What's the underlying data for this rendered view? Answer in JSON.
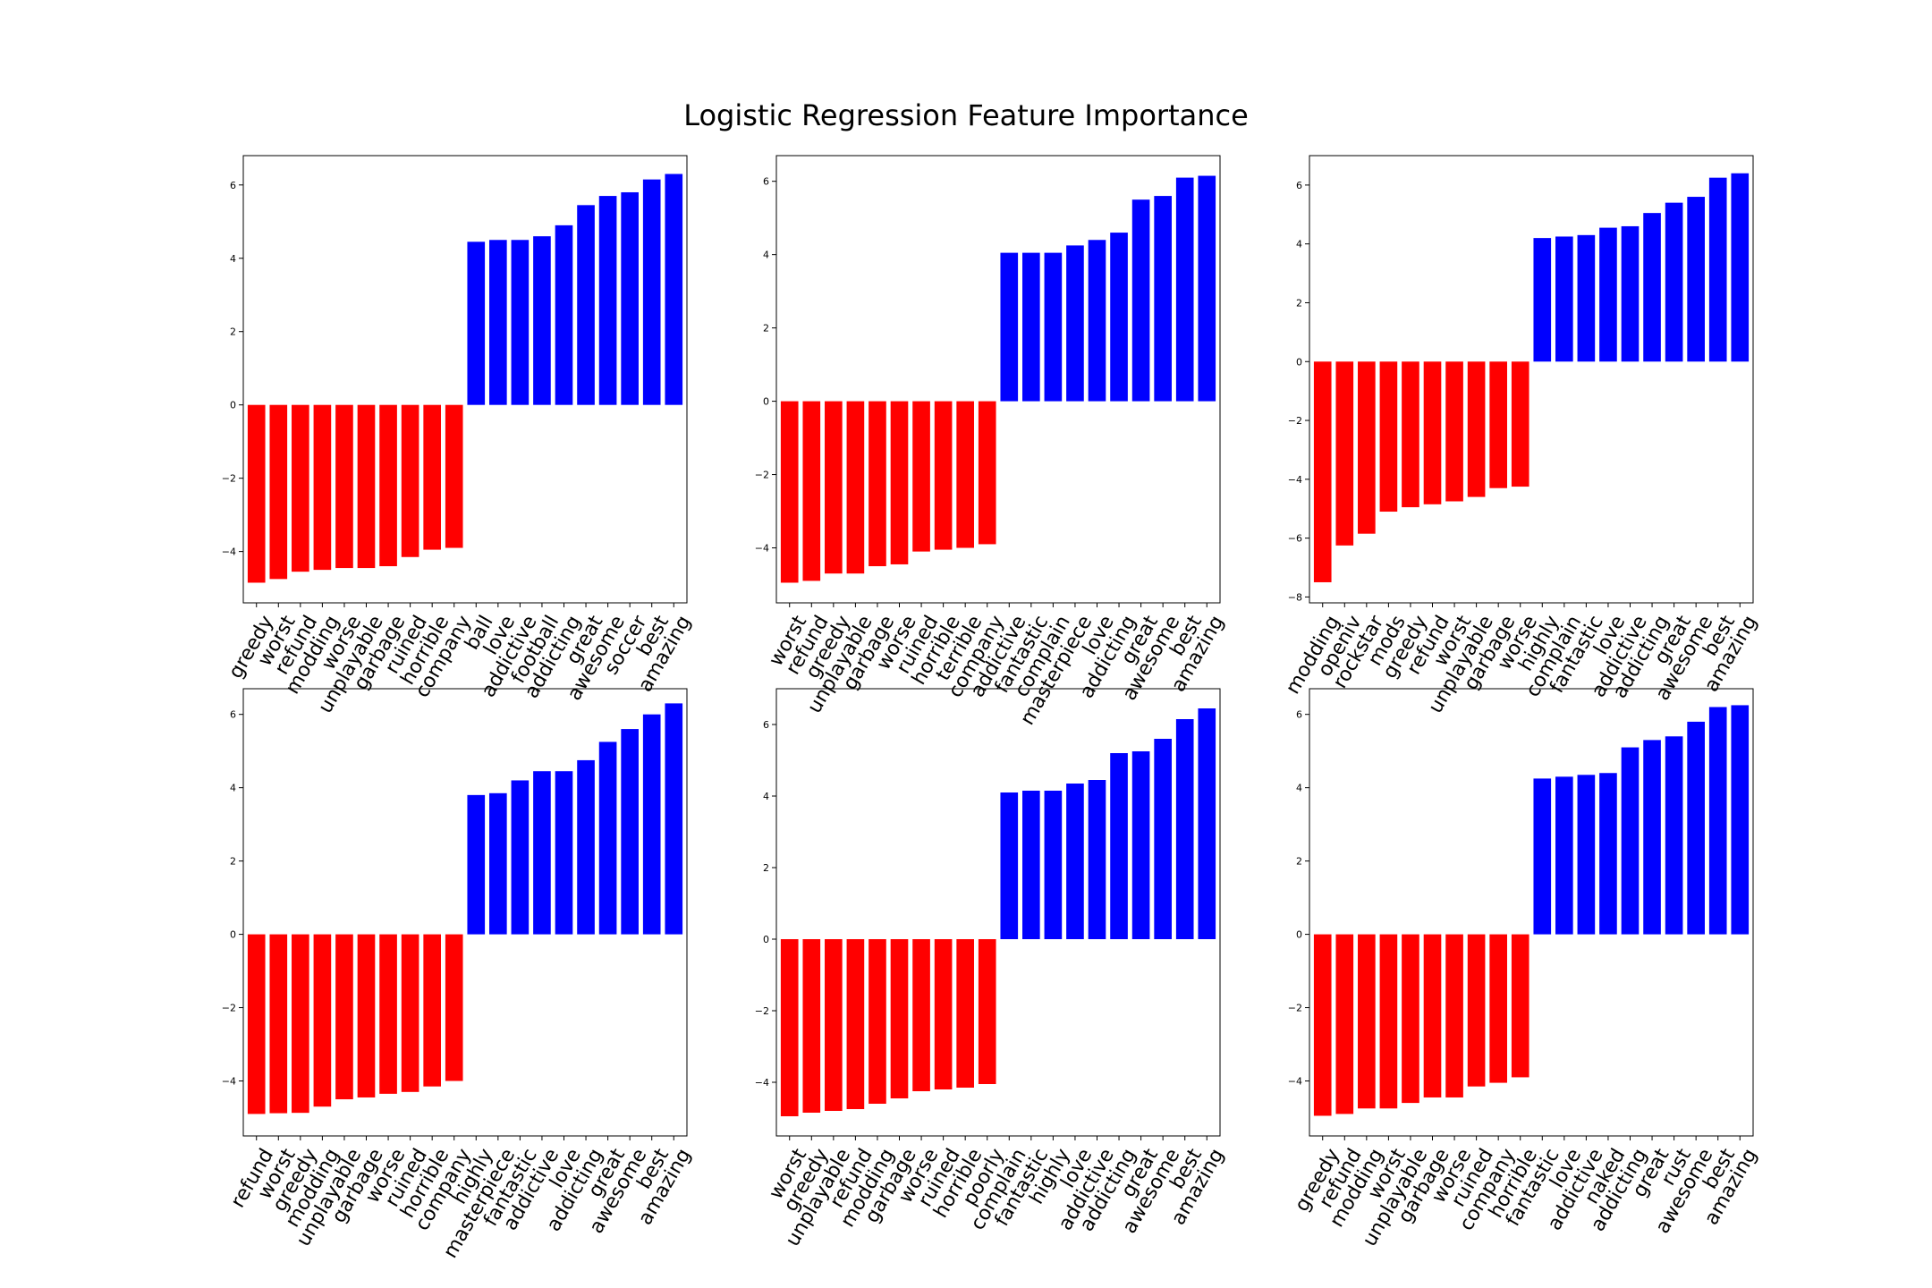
{
  "figure": {
    "title": "Logistic Regression Feature Importance"
  },
  "colors": {
    "negative": "#ff0000",
    "positive": "#0000ff",
    "background": "#ffffff",
    "axis": "#000000"
  },
  "chart_data": [
    {
      "type": "bar",
      "categories": [
        "greedy",
        "worst",
        "refund",
        "modding",
        "worse",
        "unplayable",
        "garbage",
        "ruined",
        "horrible",
        "company",
        "ball",
        "love",
        "addictive",
        "football",
        "addicting",
        "great",
        "awesome",
        "soccer",
        "best",
        "amazing"
      ],
      "values": [
        -4.85,
        -4.75,
        -4.55,
        -4.5,
        -4.45,
        -4.45,
        -4.4,
        -4.15,
        -3.95,
        -3.9,
        4.45,
        4.5,
        4.5,
        4.6,
        4.9,
        5.45,
        5.7,
        5.8,
        6.15,
        6.3
      ],
      "colors": [
        "negative",
        "negative",
        "negative",
        "negative",
        "negative",
        "negative",
        "negative",
        "negative",
        "negative",
        "negative",
        "positive",
        "positive",
        "positive",
        "positive",
        "positive",
        "positive",
        "positive",
        "positive",
        "positive",
        "positive"
      ],
      "yticks": [
        -4,
        -2,
        0,
        2,
        4,
        6
      ],
      "ytick_labels": [
        "−4",
        "−2",
        "0",
        "2",
        "4",
        "6"
      ],
      "ylim": [
        -5.4,
        6.8
      ],
      "grid": false
    },
    {
      "type": "bar",
      "categories": [
        "worst",
        "refund",
        "greedy",
        "unplayable",
        "garbage",
        "worse",
        "ruined",
        "horrible",
        "terrible",
        "company",
        "addictive",
        "fantastic",
        "complain",
        "masterpiece",
        "love",
        "addicting",
        "great",
        "awesome",
        "best",
        "amazing"
      ],
      "values": [
        -4.95,
        -4.9,
        -4.7,
        -4.7,
        -4.5,
        -4.45,
        -4.1,
        -4.05,
        -4.0,
        -3.9,
        4.05,
        4.05,
        4.05,
        4.25,
        4.4,
        4.6,
        5.5,
        5.6,
        6.1,
        6.15
      ],
      "colors": [
        "negative",
        "negative",
        "negative",
        "negative",
        "negative",
        "negative",
        "negative",
        "negative",
        "negative",
        "negative",
        "positive",
        "positive",
        "positive",
        "positive",
        "positive",
        "positive",
        "positive",
        "positive",
        "positive",
        "positive"
      ],
      "yticks": [
        -4,
        -2,
        0,
        2,
        4,
        6
      ],
      "ytick_labels": [
        "−4",
        "−2",
        "0",
        "2",
        "4",
        "6"
      ],
      "ylim": [
        -5.5,
        6.7
      ],
      "grid": false
    },
    {
      "type": "bar",
      "categories": [
        "modding",
        "openiv",
        "rockstar",
        "mods",
        "greedy",
        "refund",
        "worst",
        "unplayable",
        "garbage",
        "worse",
        "highly",
        "complain",
        "fantastic",
        "love",
        "addictive",
        "addicting",
        "great",
        "awesome",
        "best",
        "amazing"
      ],
      "values": [
        -7.5,
        -6.25,
        -5.85,
        -5.1,
        -4.95,
        -4.85,
        -4.75,
        -4.6,
        -4.3,
        -4.25,
        4.2,
        4.25,
        4.3,
        4.55,
        4.6,
        5.05,
        5.4,
        5.6,
        6.25,
        6.4
      ],
      "colors": [
        "negative",
        "negative",
        "negative",
        "negative",
        "negative",
        "negative",
        "negative",
        "negative",
        "negative",
        "negative",
        "positive",
        "positive",
        "positive",
        "positive",
        "positive",
        "positive",
        "positive",
        "positive",
        "positive",
        "positive"
      ],
      "yticks": [
        -8,
        -6,
        -4,
        -2,
        0,
        2,
        4,
        6
      ],
      "ytick_labels": [
        "−8",
        "−6",
        "−4",
        "−2",
        "0",
        "2",
        "4",
        "6"
      ],
      "ylim": [
        -8.2,
        7.0
      ],
      "grid": false
    },
    {
      "type": "bar",
      "categories": [
        "refund",
        "worst",
        "greedy",
        "modding",
        "unplayable",
        "garbage",
        "worse",
        "ruined",
        "horrible",
        "company",
        "highly",
        "masterpiece",
        "fantastic",
        "addictive",
        "love",
        "addicting",
        "great",
        "awesome",
        "best",
        "amazing"
      ],
      "values": [
        -4.9,
        -4.88,
        -4.87,
        -4.7,
        -4.5,
        -4.45,
        -4.35,
        -4.3,
        -4.15,
        -4.0,
        3.8,
        3.85,
        4.2,
        4.45,
        4.45,
        4.75,
        5.25,
        5.6,
        6.0,
        6.3
      ],
      "colors": [
        "negative",
        "negative",
        "negative",
        "negative",
        "negative",
        "negative",
        "negative",
        "negative",
        "negative",
        "negative",
        "positive",
        "positive",
        "positive",
        "positive",
        "positive",
        "positive",
        "positive",
        "positive",
        "positive",
        "positive"
      ],
      "yticks": [
        -4,
        -2,
        0,
        2,
        4,
        6
      ],
      "ytick_labels": [
        "−4",
        "−2",
        "0",
        "2",
        "4",
        "6"
      ],
      "ylim": [
        -5.5,
        6.7
      ],
      "grid": false
    },
    {
      "type": "bar",
      "categories": [
        "worst",
        "greedy",
        "unplayable",
        "refund",
        "modding",
        "garbage",
        "worse",
        "ruined",
        "horrible",
        "poorly",
        "complain",
        "fantastic",
        "highly",
        "love",
        "addictive",
        "addicting",
        "great",
        "awesome",
        "best",
        "amazing"
      ],
      "values": [
        -4.95,
        -4.85,
        -4.8,
        -4.75,
        -4.6,
        -4.45,
        -4.25,
        -4.2,
        -4.15,
        -4.05,
        4.1,
        4.15,
        4.15,
        4.35,
        4.45,
        5.2,
        5.25,
        5.6,
        6.15,
        6.45
      ],
      "colors": [
        "negative",
        "negative",
        "negative",
        "negative",
        "negative",
        "negative",
        "negative",
        "negative",
        "negative",
        "negative",
        "positive",
        "positive",
        "positive",
        "positive",
        "positive",
        "positive",
        "positive",
        "positive",
        "positive",
        "positive"
      ],
      "yticks": [
        -4,
        -2,
        0,
        2,
        4,
        6
      ],
      "ytick_labels": [
        "−4",
        "−2",
        "0",
        "2",
        "4",
        "6"
      ],
      "ylim": [
        -5.5,
        7.0
      ],
      "grid": false
    },
    {
      "type": "bar",
      "categories": [
        "greedy",
        "refund",
        "modding",
        "worst",
        "unplayable",
        "garbage",
        "worse",
        "ruined",
        "company",
        "horrible",
        "fantastic",
        "love",
        "addictive",
        "naked",
        "addicting",
        "great",
        "rust",
        "awesome",
        "best",
        "amazing"
      ],
      "values": [
        -4.95,
        -4.9,
        -4.75,
        -4.75,
        -4.6,
        -4.45,
        -4.45,
        -4.15,
        -4.05,
        -3.9,
        4.25,
        4.3,
        4.35,
        4.4,
        5.1,
        5.3,
        5.4,
        5.8,
        6.2,
        6.25
      ],
      "colors": [
        "negative",
        "negative",
        "negative",
        "negative",
        "negative",
        "negative",
        "negative",
        "negative",
        "negative",
        "negative",
        "positive",
        "positive",
        "positive",
        "positive",
        "positive",
        "positive",
        "positive",
        "positive",
        "positive",
        "positive"
      ],
      "yticks": [
        -4,
        -2,
        0,
        2,
        4,
        6
      ],
      "ytick_labels": [
        "−4",
        "−2",
        "0",
        "2",
        "4",
        "6"
      ],
      "ylim": [
        -5.5,
        6.7
      ],
      "grid": false
    }
  ]
}
